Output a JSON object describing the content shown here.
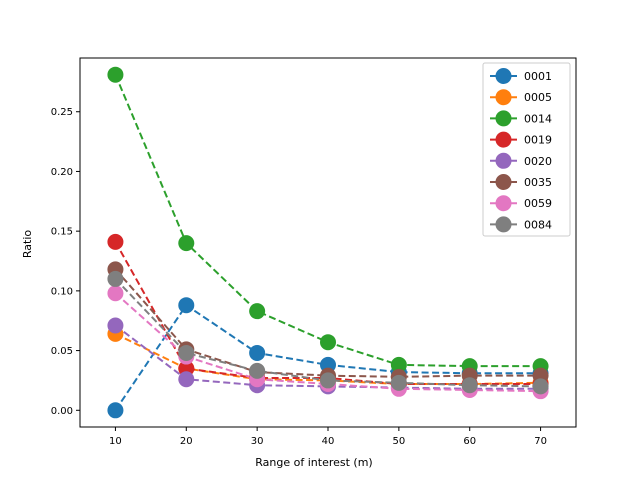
{
  "chart_data": {
    "type": "line",
    "title": "",
    "xlabel": "Range of interest (m)",
    "ylabel": "Ratio",
    "x": [
      10,
      20,
      30,
      40,
      50,
      60,
      70
    ],
    "xlim": [
      5,
      75
    ],
    "ylim": [
      -0.014,
      0.295
    ],
    "xticks": [
      10,
      20,
      30,
      40,
      50,
      60,
      70
    ],
    "yticks": [
      0.0,
      0.05,
      0.1,
      0.15,
      0.2,
      0.25
    ],
    "ytick_labels": [
      "0.00",
      "0.05",
      "0.10",
      "0.15",
      "0.20",
      "0.25"
    ],
    "legend_position": "top-right",
    "line_style": "dashed",
    "marker": "circle",
    "series": [
      {
        "name": "0001",
        "color": "#1f77b4",
        "values": [
          0.0,
          0.088,
          0.048,
          0.038,
          0.032,
          0.031,
          0.031
        ]
      },
      {
        "name": "0005",
        "color": "#ff7f0e",
        "values": [
          0.064,
          0.035,
          0.026,
          0.025,
          0.022,
          0.022,
          0.023
        ]
      },
      {
        "name": "0014",
        "color": "#2ca02c",
        "values": [
          0.281,
          0.14,
          0.083,
          0.057,
          0.038,
          0.037,
          0.037
        ]
      },
      {
        "name": "0019",
        "color": "#d62728",
        "values": [
          0.141,
          0.035,
          0.027,
          0.027,
          0.022,
          0.022,
          0.022
        ]
      },
      {
        "name": "0020",
        "color": "#9467bd",
        "values": [
          0.071,
          0.026,
          0.021,
          0.02,
          0.019,
          0.018,
          0.018
        ]
      },
      {
        "name": "0035",
        "color": "#8c564b",
        "values": [
          0.118,
          0.051,
          0.032,
          0.029,
          0.028,
          0.029,
          0.029
        ]
      },
      {
        "name": "0059",
        "color": "#e377c2",
        "values": [
          0.098,
          0.045,
          0.026,
          0.022,
          0.018,
          0.017,
          0.016
        ]
      },
      {
        "name": "0084",
        "color": "#7f7f7f",
        "values": [
          0.11,
          0.048,
          0.033,
          0.025,
          0.023,
          0.021,
          0.02
        ]
      }
    ]
  }
}
